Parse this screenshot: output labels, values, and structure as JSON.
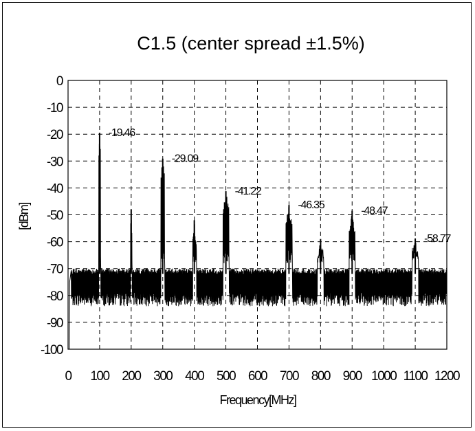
{
  "chart_data": {
    "type": "line",
    "title": "C1.5 (center spread ±1.5%)",
    "xlabel": "Frequency[MHz]",
    "ylabel": "[dBm]",
    "xlim": [
      0,
      1200
    ],
    "ylim": [
      -100,
      0
    ],
    "x_ticks": [
      0,
      100,
      200,
      300,
      400,
      500,
      600,
      700,
      800,
      900,
      1000,
      1100,
      1200
    ],
    "y_ticks": [
      0,
      -10,
      -20,
      -30,
      -40,
      -50,
      -60,
      -70,
      -80,
      -90,
      -100
    ],
    "grid": true,
    "noise_floor": {
      "top": -70,
      "bottom": -83
    },
    "harmonics": [
      {
        "x": 100,
        "y": -19.46,
        "label": "-19.46"
      },
      {
        "x": 200,
        "y": -48
      },
      {
        "x": 300,
        "y": -29.09,
        "label": "-29.09"
      },
      {
        "x": 400,
        "y": -52
      },
      {
        "x": 500,
        "y": -41.22,
        "label": "-41.22"
      },
      {
        "x": 700,
        "y": -46.35,
        "label": "-46.35"
      },
      {
        "x": 800,
        "y": -59
      },
      {
        "x": 900,
        "y": -48.47,
        "label": "-48.47"
      },
      {
        "x": 1100,
        "y": -58.77,
        "label": "-58.77"
      }
    ]
  },
  "colors": {
    "trace": "#000000",
    "grid": "#000000",
    "background": "#ffffff"
  }
}
